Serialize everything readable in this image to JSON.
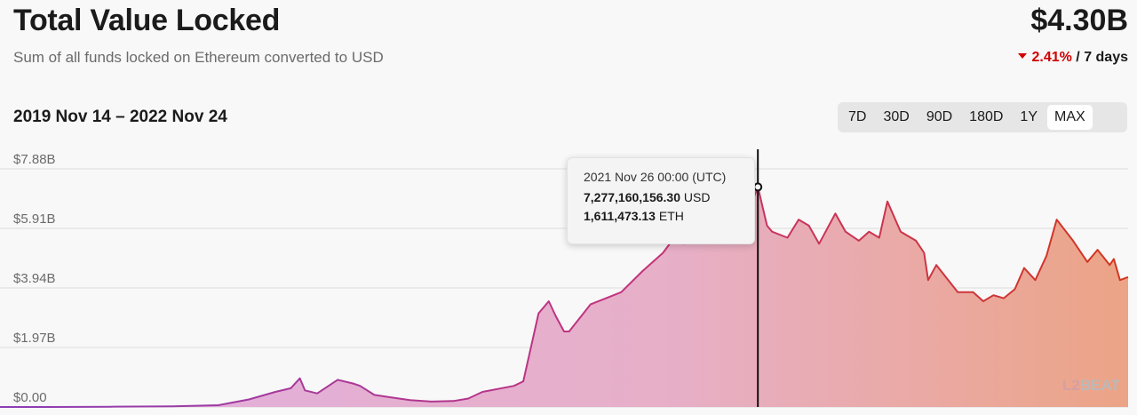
{
  "header": {
    "title": "Total Value Locked",
    "subtitle": "Sum of all funds locked on Ethereum converted to USD",
    "tvl": "$4.30B",
    "change_pct": "2.41%",
    "change_period": "/ 7 days"
  },
  "range": {
    "label": "2019 Nov 14 – 2022 Nov 24",
    "buttons": [
      "7D",
      "30D",
      "90D",
      "180D",
      "1Y",
      "MAX"
    ],
    "active": "MAX"
  },
  "tooltip": {
    "date": "2021 Nov 26 00:00 (UTC)",
    "usd_value": "7,277,160,156.30",
    "usd_unit": "USD",
    "eth_value": "1,611,473.13",
    "eth_unit": "ETH"
  },
  "logo": "BEAT",
  "colors": {
    "start": "#8c3fb5",
    "mid": "#c2337e",
    "end": "#d3361c",
    "fill_start": "#e2afe0",
    "fill_end": "#eca486",
    "grid": "#dddddd",
    "negative": "#d10000"
  },
  "chart_data": {
    "type": "area",
    "title": "Total Value Locked",
    "y_ticks": [
      "$0.00",
      "$1.97B",
      "$3.94B",
      "$5.91B",
      "$7.88B"
    ],
    "y_tick_values": [
      0,
      1.97,
      3.94,
      5.91,
      7.88
    ],
    "ylim": [
      0,
      7.88
    ],
    "y_unit": "USD billions",
    "xlim": [
      "2019-11-14",
      "2022-11-24"
    ],
    "grid": true,
    "highlight": {
      "date": "2021-11-26",
      "value": 7.28
    },
    "series": [
      {
        "x": [
          "2019-11-14",
          "2020-01-01",
          "2020-03-01",
          "2020-05-01",
          "2020-06-15",
          "2020-07-15",
          "2020-08-10",
          "2020-08-25",
          "2020-09-03",
          "2020-09-08",
          "2020-09-20",
          "2020-10-10",
          "2020-10-25",
          "2020-11-01",
          "2020-11-15",
          "2020-12-01",
          "2020-12-20",
          "2021-01-10",
          "2021-02-01",
          "2021-02-15",
          "2021-03-01",
          "2021-04-01",
          "2021-04-10",
          "2021-04-25",
          "2021-05-05",
          "2021-05-12",
          "2021-05-20",
          "2021-05-25",
          "2021-06-15",
          "2021-07-15",
          "2021-08-05",
          "2021-08-25",
          "2021-09-05",
          "2021-09-15",
          "2021-10-01",
          "2021-10-15",
          "2021-10-28",
          "2021-11-10",
          "2021-11-26",
          "2021-12-05",
          "2021-12-10",
          "2021-12-25",
          "2022-01-05",
          "2022-01-15",
          "2022-01-25",
          "2022-02-10",
          "2022-02-20",
          "2022-03-05",
          "2022-03-15",
          "2022-03-25",
          "2022-04-02",
          "2022-04-15",
          "2022-04-30",
          "2022-05-08",
          "2022-05-12",
          "2022-05-20",
          "2022-06-10",
          "2022-06-15",
          "2022-06-25",
          "2022-07-05",
          "2022-07-15",
          "2022-07-25",
          "2022-08-05",
          "2022-08-14",
          "2022-08-25",
          "2022-09-05",
          "2022-09-15",
          "2022-10-01",
          "2022-10-15",
          "2022-10-25",
          "2022-11-06",
          "2022-11-10",
          "2022-11-16",
          "2022-11-24"
        ],
        "y": [
          0.0,
          0.0,
          0.01,
          0.02,
          0.06,
          0.25,
          0.5,
          0.62,
          0.95,
          0.55,
          0.45,
          0.9,
          0.78,
          0.7,
          0.4,
          0.32,
          0.23,
          0.18,
          0.2,
          0.28,
          0.5,
          0.7,
          0.85,
          3.1,
          3.5,
          3.0,
          2.5,
          2.5,
          3.4,
          3.8,
          4.5,
          5.1,
          5.6,
          5.4,
          5.6,
          6.1,
          6.8,
          5.9,
          7.28,
          6.0,
          5.8,
          5.6,
          6.2,
          6.0,
          5.4,
          6.4,
          5.8,
          5.5,
          5.8,
          5.6,
          6.8,
          5.8,
          5.5,
          5.1,
          4.2,
          4.7,
          3.8,
          3.8,
          3.8,
          3.5,
          3.7,
          3.6,
          3.9,
          4.6,
          4.2,
          5.0,
          6.2,
          5.5,
          4.8,
          5.2,
          4.7,
          4.9,
          4.2,
          4.3
        ]
      }
    ]
  }
}
